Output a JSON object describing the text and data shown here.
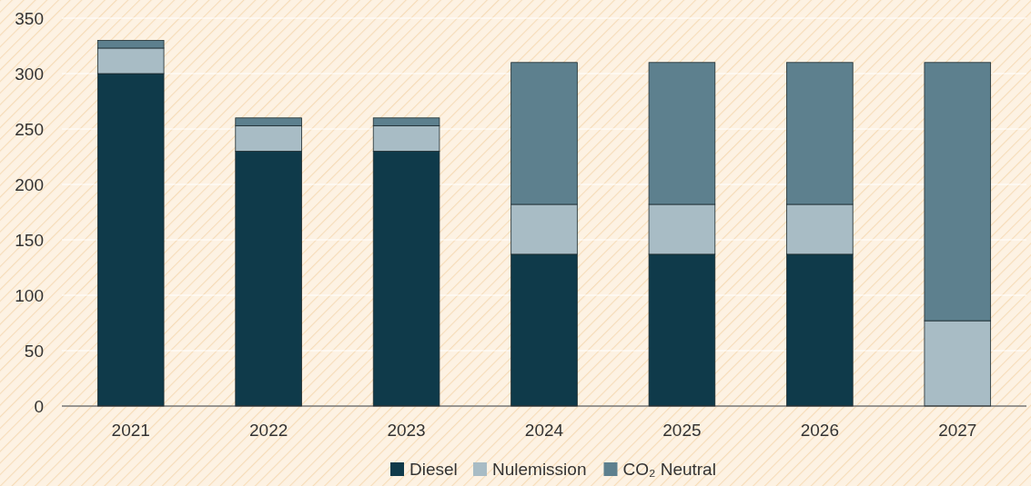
{
  "chart_data": {
    "type": "bar",
    "stacked": true,
    "categories": [
      "2021",
      "2022",
      "2023",
      "2024",
      "2025",
      "2026",
      "2027"
    ],
    "series": [
      {
        "name": "Diesel",
        "color": "#0f3a4a",
        "values": [
          300,
          230,
          230,
          137,
          137,
          137,
          0
        ]
      },
      {
        "name": "Nulemission",
        "color": "#a8bcc5",
        "values": [
          23,
          23,
          23,
          45,
          45,
          45,
          77
        ]
      },
      {
        "name": "CO₂ Neutral",
        "color": "#5d808e",
        "values": [
          7,
          7,
          7,
          128,
          128,
          128,
          233
        ]
      }
    ],
    "ylim": [
      0,
      350
    ],
    "yticks": [
      0,
      50,
      100,
      150,
      200,
      250,
      300,
      350
    ],
    "grid": "y",
    "legend": "bottom"
  }
}
